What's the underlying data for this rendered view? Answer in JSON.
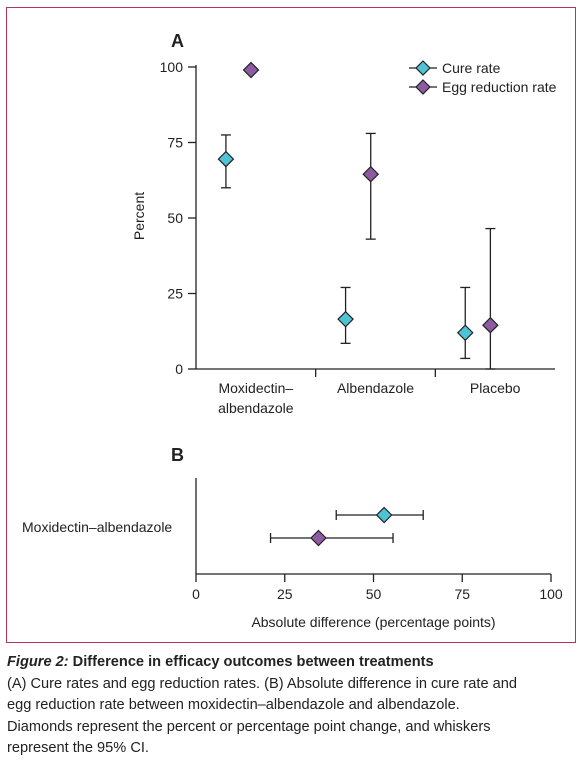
{
  "colors": {
    "cure": "#4ec3d4",
    "egg": "#8e5ba3",
    "axis": "#222222",
    "frame": "#b8325a"
  },
  "chart_data": [
    {
      "panel": "A",
      "type": "scatter",
      "ylabel": "Percent",
      "ylim": [
        0,
        100
      ],
      "yticks": [
        0,
        25,
        50,
        75,
        100
      ],
      "categories": [
        "Moxidectin–albendazole",
        "Albendazole",
        "Placebo"
      ],
      "category_lines": [
        [
          "Moxidectin–",
          "albendazole"
        ],
        [
          "Albendazole"
        ],
        [
          "Placebo"
        ]
      ],
      "legend": "top-right",
      "series": [
        {
          "name": "Cure rate",
          "color_key": "cure",
          "points": [
            {
              "category": "Moxidectin–albendazole",
              "value": 69.5,
              "ci": [
                60,
                77.5
              ]
            },
            {
              "category": "Albendazole",
              "value": 16.5,
              "ci": [
                8.5,
                27
              ]
            },
            {
              "category": "Placebo",
              "value": 12,
              "ci": [
                3.5,
                27
              ]
            }
          ]
        },
        {
          "name": "Egg reduction rate",
          "color_key": "egg",
          "points": [
            {
              "category": "Moxidectin–albendazole",
              "value": 99
            },
            {
              "category": "Albendazole",
              "value": 64.5,
              "ci": [
                43,
                78
              ]
            },
            {
              "category": "Placebo",
              "value": 14.5,
              "ci": [
                0,
                46.5
              ]
            }
          ]
        }
      ]
    },
    {
      "panel": "B",
      "type": "scatter",
      "xlabel": "Absolute difference (percentage points)",
      "xlim": [
        0,
        100
      ],
      "xticks": [
        0,
        25,
        50,
        75,
        100
      ],
      "row_label": "Moxidectin–albendazole",
      "series": [
        {
          "name": "Cure rate",
          "color_key": "cure",
          "value": 53,
          "ci": [
            39.5,
            64
          ]
        },
        {
          "name": "Egg reduction rate",
          "color_key": "egg",
          "value": 34.5,
          "ci": [
            21,
            55.5
          ]
        }
      ]
    }
  ],
  "caption": {
    "figure_label": "Figure 2:",
    "title": " Difference in efficacy outcomes between treatments",
    "lines": [
      "(A) Cure rates and egg reduction rates. (B) Absolute difference in cure rate and",
      "egg reduction rate between moxidectin–albendazole and albendazole.",
      "Diamonds represent the percent or percentage point change, and whiskers",
      "represent the 95% CI."
    ]
  }
}
